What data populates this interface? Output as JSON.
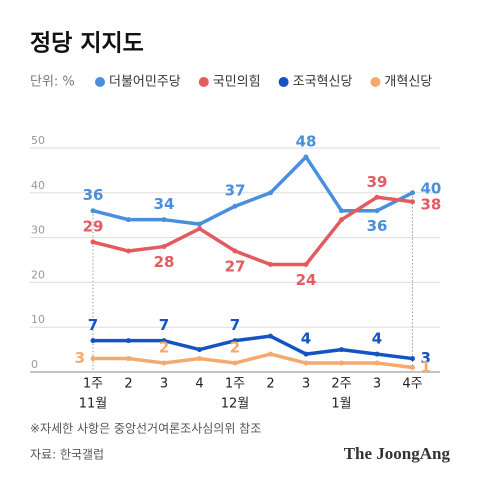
{
  "chart_data": {
    "type": "line",
    "title": "정당 지지도",
    "unit_label": "단위: %",
    "categories": [
      "1주",
      "2",
      "3",
      "4",
      "1주",
      "2",
      "3",
      "2주",
      "3",
      "4주"
    ],
    "periods": [
      "11월",
      null,
      null,
      null,
      "12월",
      null,
      null,
      "1월",
      null,
      null
    ],
    "series": [
      {
        "name": "더불어민주당",
        "color": "#4a8fdc",
        "values": [
          36,
          34,
          34,
          33,
          37,
          40,
          48,
          36,
          36,
          40
        ],
        "value_labels": [
          "36",
          null,
          "34",
          null,
          "37",
          null,
          "48",
          null,
          "36",
          "40"
        ]
      },
      {
        "name": "국민의힘",
        "color": "#e35b5f",
        "values": [
          29,
          27,
          28,
          32,
          27,
          24,
          24,
          34,
          39,
          38
        ],
        "value_labels": [
          "29",
          null,
          "28",
          null,
          "27",
          null,
          "24",
          null,
          "39",
          "38"
        ]
      },
      {
        "name": "조국혁신당",
        "color": "#1553c4",
        "values": [
          7,
          7,
          7,
          5,
          7,
          8,
          4,
          5,
          4,
          3
        ],
        "value_labels": [
          "7",
          null,
          "7",
          null,
          "7",
          null,
          "4",
          null,
          "4",
          "3"
        ]
      },
      {
        "name": "개혁신당",
        "color": "#f6a96c",
        "values": [
          3,
          3,
          2,
          3,
          2,
          4,
          2,
          2,
          2,
          1
        ],
        "value_labels": [
          "3",
          null,
          "2",
          null,
          "2",
          null,
          null,
          null,
          null,
          "1"
        ]
      }
    ],
    "ylim": [
      0,
      50
    ],
    "yticks": [
      0,
      10,
      20,
      30,
      40,
      50
    ],
    "grid": true,
    "note": "※자세한 사항은 중앙선거여론조사심의위 참조",
    "source": "자료: 한국갤럽",
    "brand": "The JoongAng"
  }
}
